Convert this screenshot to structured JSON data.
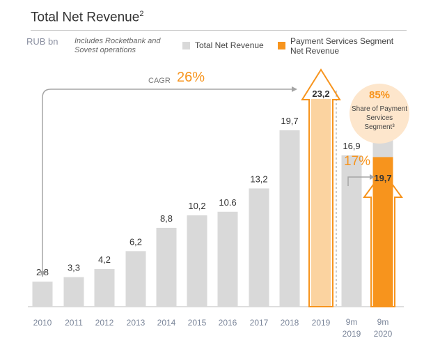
{
  "title": "Total Net Revenue",
  "title_sup": "2",
  "unit": "RUB bn",
  "note": "Includes Rocketbank and Sovest operations",
  "legend": [
    {
      "label": "Total Net Revenue",
      "color": "#d9d9d9"
    },
    {
      "label": "Payment Services Segment Net Revenue",
      "color": "#f7941d"
    }
  ],
  "annotations": {
    "cagr_label": "CAGR",
    "cagr_value": "26%",
    "share_pct": "85%",
    "share_text": "Share of Payment Services Segment³",
    "growth_pct": "17%"
  },
  "chart_data": {
    "type": "bar",
    "categories": [
      "2010",
      "2011",
      "2012",
      "2013",
      "2014",
      "2015",
      "2016",
      "2017",
      "2018",
      "2019",
      "9m 2019",
      "9m 2020"
    ],
    "series": [
      {
        "name": "Total Net Revenue",
        "values": [
          2.8,
          3.3,
          4.2,
          6.2,
          8.8,
          10.2,
          10.6,
          13.2,
          19.7,
          23.2,
          16.9,
          19.7
        ],
        "color": "#d9d9d9"
      },
      {
        "name": "Payment Services Segment Net Revenue",
        "values": [
          null,
          null,
          null,
          null,
          null,
          null,
          null,
          null,
          null,
          null,
          null,
          16.7
        ],
        "color": "#f7941d"
      }
    ],
    "data_labels": [
      "2,8",
      "3,3",
      "4,2",
      "6,2",
      "8,8",
      "10,2",
      "10.6",
      "13,2",
      "19,7",
      "23,2",
      "16,9",
      "19,7"
    ],
    "highlight_color": "#fbd3a0",
    "ylim": [
      0,
      25
    ]
  }
}
